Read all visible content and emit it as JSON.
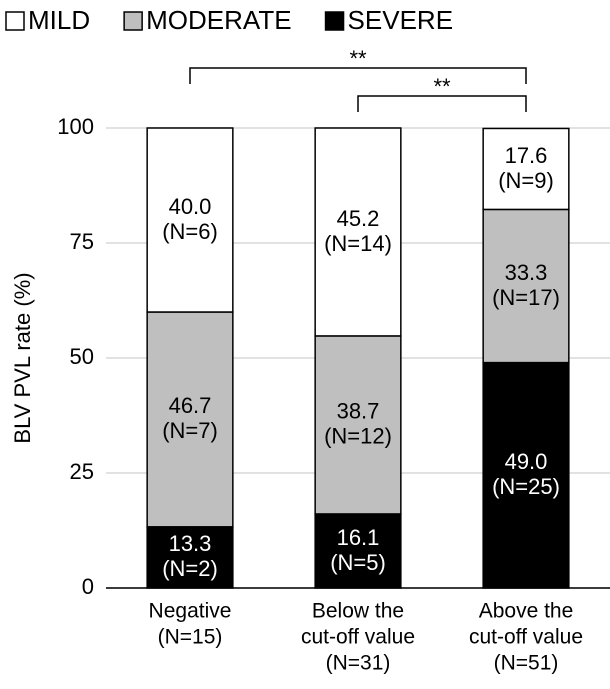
{
  "chart_data": {
    "type": "stacked_bar",
    "y_label": "BLV PVL rate (%)",
    "categories": [
      [
        "Negative",
        "(N=15)"
      ],
      [
        "Below the",
        "cut-off value",
        "(N=31)"
      ],
      [
        "Above the",
        "cut-off value",
        "(N=51)"
      ]
    ],
    "series": [
      {
        "name": "MILD",
        "color": "#ffffff",
        "values": [
          40.0,
          45.2,
          17.6
        ],
        "value_labels": [
          "40.0",
          "45.2",
          "17.6"
        ],
        "count_labels": [
          "(N=6)",
          "(N=14)",
          "(N=9)"
        ]
      },
      {
        "name": "MODERATE",
        "color": "#bfbfbf",
        "values": [
          46.7,
          38.7,
          33.3
        ],
        "value_labels": [
          "46.7",
          "38.7",
          "33.3"
        ],
        "count_labels": [
          "(N=7)",
          "(N=12)",
          "(N=17)"
        ]
      },
      {
        "name": "SEVERE",
        "color": "#000000",
        "values": [
          13.3,
          16.1,
          49.0
        ],
        "value_labels": [
          "13.3",
          "16.1",
          "49.0"
        ],
        "count_labels": [
          "(N=2)",
          "(N=5)",
          "(N=25)"
        ]
      }
    ],
    "ylim": [
      0,
      100
    ],
    "yticks": [
      0,
      25,
      50,
      75,
      100
    ],
    "grid": true,
    "annotations": [
      {
        "label": "**",
        "from": 0,
        "to": 2
      },
      {
        "label": "**",
        "from": 1,
        "to": 2
      }
    ]
  }
}
